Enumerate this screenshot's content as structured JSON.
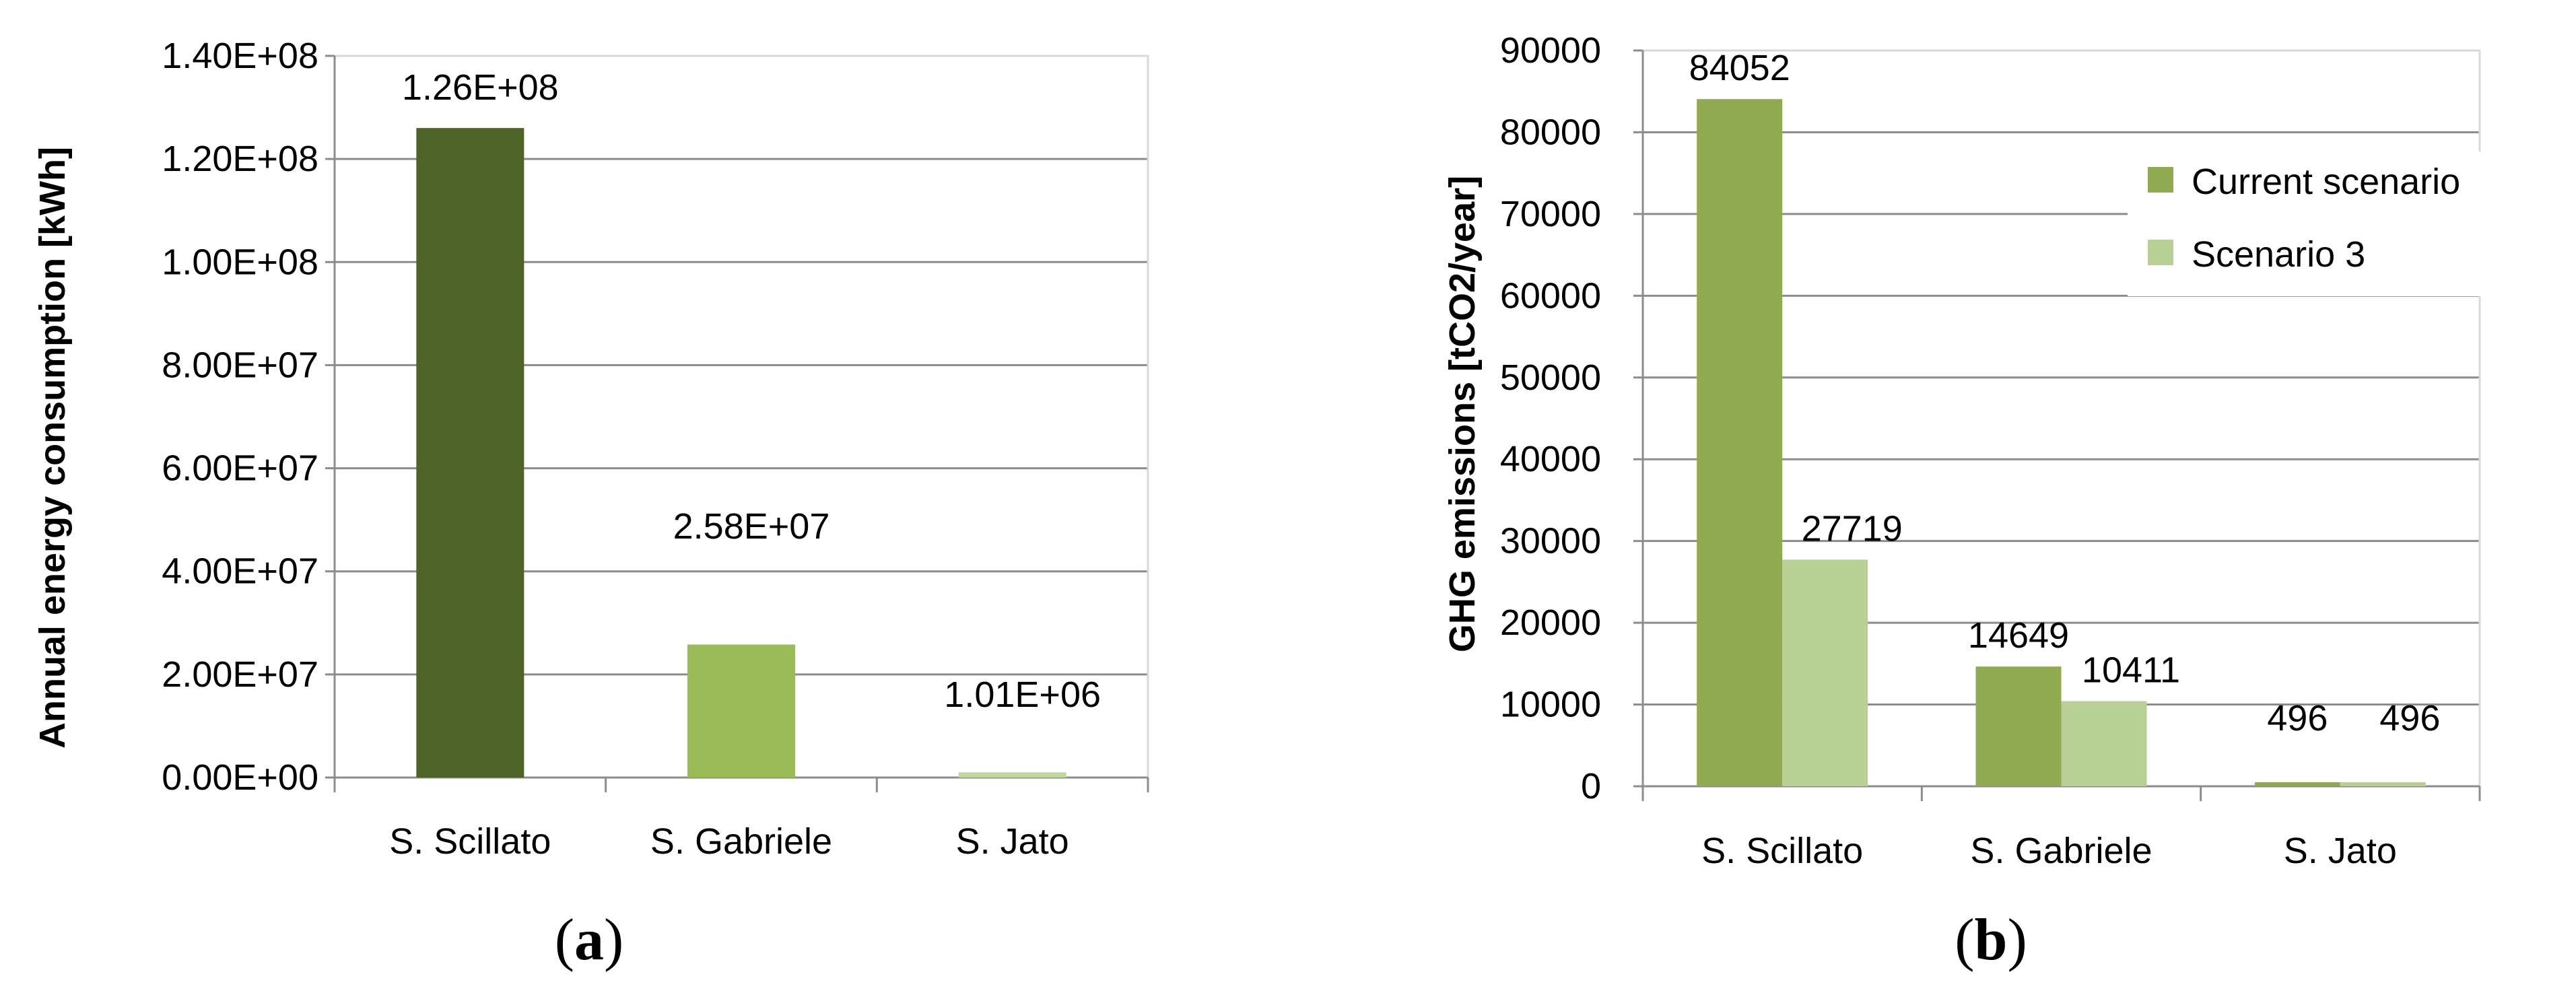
{
  "chart_data": [
    {
      "type": "bar",
      "categories": [
        "S. Scillato",
        "S. Gabriele",
        "S. Jato"
      ],
      "values": [
        126000000,
        25800000,
        1010000
      ],
      "data_labels": [
        "1.26E+08",
        "2.58E+07",
        "1.01E+06"
      ],
      "bar_colors": [
        "#4f6228",
        "#9bbb59",
        "#c3d69b"
      ],
      "ylabel": "Annual energy consumption [kWh]",
      "ylim": [
        0,
        140000000
      ],
      "yticks": [
        "0.00E+00",
        "2.00E+07",
        "4.00E+07",
        "6.00E+07",
        "8.00E+07",
        "1.00E+08",
        "1.20E+08",
        "1.40E+08"
      ],
      "grid": true,
      "legend": "none",
      "caption": "(a)"
    },
    {
      "type": "bar",
      "categories": [
        "S. Scillato",
        "S. Gabriele",
        "S. Jato"
      ],
      "series": [
        {
          "name": "Current scenario",
          "values": [
            84052,
            14649,
            496
          ],
          "labels": [
            "84052",
            "14649",
            "496"
          ],
          "color": "#8faa50"
        },
        {
          "name": "Scenario 3",
          "values": [
            27719,
            10411,
            496
          ],
          "labels": [
            "27719",
            "10411",
            "496"
          ],
          "color": "#b8cf95"
        }
      ],
      "ylabel": "GHG emissions [tCO2/year]",
      "ylim": [
        0,
        90000
      ],
      "yticks": [
        "0",
        "10000",
        "20000",
        "30000",
        "40000",
        "50000",
        "60000",
        "70000",
        "80000",
        "90000"
      ],
      "grid": true,
      "legend": "top-right",
      "caption": "(b)"
    }
  ]
}
